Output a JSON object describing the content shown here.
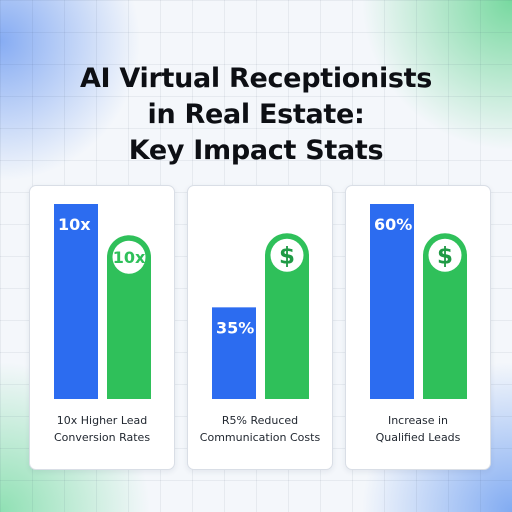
{
  "title_lines": [
    "AI Virtual Receptionists",
    "in Real Estate:",
    "Key Impact Stats"
  ],
  "colors": {
    "blue": "#2c6cf0",
    "green": "#2fc05a",
    "dollar_green": "#1f9a45"
  },
  "chart_data": [
    {
      "type": "bar",
      "bars": [
        {
          "color": "blue",
          "value": 1.0,
          "label": "10x",
          "label_style": "top-left"
        },
        {
          "color": "green",
          "value": 0.84,
          "label": "10x",
          "label_style": "circle"
        }
      ],
      "caption_lines": [
        "10x Higher Lead",
        "Conversion Rates"
      ]
    },
    {
      "type": "bar",
      "bars": [
        {
          "color": "blue",
          "value": 0.47,
          "label": "35%",
          "label_style": "top-left"
        },
        {
          "color": "green",
          "value": 0.85,
          "label": "$",
          "label_style": "circle"
        }
      ],
      "caption_lines": [
        "R5% Reduced",
        "Communication Costs"
      ]
    },
    {
      "type": "bar",
      "bars": [
        {
          "color": "blue",
          "value": 1.0,
          "label": "60%",
          "label_style": "top-left"
        },
        {
          "color": "green",
          "value": 0.85,
          "label": "$",
          "label_style": "circle"
        }
      ],
      "caption_lines": [
        "Increase in",
        "Qualified Leads"
      ]
    }
  ]
}
